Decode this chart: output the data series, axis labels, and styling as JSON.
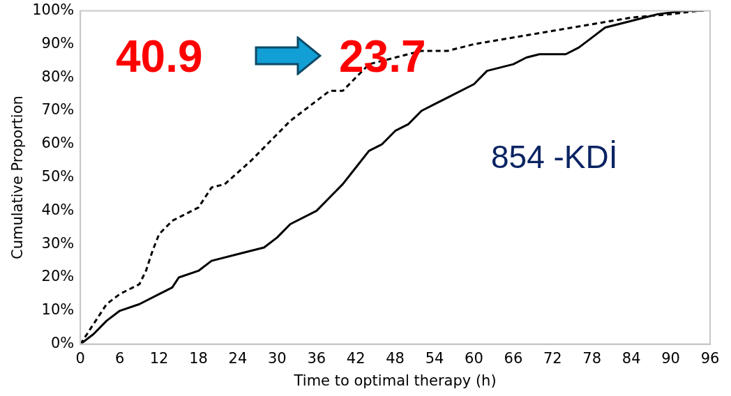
{
  "chart_data": {
    "type": "line",
    "xlabel": "Time to optimal therapy (h)",
    "ylabel": "Cumulative Proportion",
    "xlim": [
      0,
      96
    ],
    "xticks": [
      0,
      6,
      12,
      18,
      24,
      30,
      36,
      42,
      48,
      54,
      60,
      66,
      72,
      78,
      84,
      90,
      96
    ],
    "ylim": [
      0,
      100
    ],
    "yticks": [
      {
        "value": 0,
        "label": "0%"
      },
      {
        "value": 10,
        "label": "10%"
      },
      {
        "value": 20,
        "label": "20%"
      },
      {
        "value": 30,
        "label": "30%"
      },
      {
        "value": 40,
        "label": "40%"
      },
      {
        "value": 50,
        "label": "50%"
      },
      {
        "value": 60,
        "label": "60%"
      },
      {
        "value": 70,
        "label": "70%"
      },
      {
        "value": 80,
        "label": "80%"
      },
      {
        "value": 90,
        "label": "90%"
      },
      {
        "value": 100,
        "label": "100%"
      }
    ],
    "grid": false,
    "marker": "none",
    "series": [
      {
        "color": "#000000",
        "line_style": "solid",
        "x": [
          0,
          2,
          4,
          6,
          9,
          12,
          14,
          15,
          18,
          20,
          24,
          28,
          30,
          32,
          36,
          38,
          40,
          42,
          44,
          46,
          48,
          50,
          52,
          54,
          56,
          60,
          62,
          66,
          68,
          70,
          74,
          76,
          78,
          80,
          84,
          88,
          92,
          95
        ],
        "values": [
          0,
          3,
          7,
          10,
          12,
          15,
          17,
          20,
          22,
          25,
          27,
          29,
          32,
          36,
          40,
          44,
          48,
          53,
          58,
          60,
          64,
          66,
          70,
          72,
          74,
          78,
          82,
          84,
          86,
          87,
          87,
          89,
          92,
          95,
          97,
          99,
          100,
          100
        ]
      },
      {
        "color": "#000000",
        "line_style": "dashed",
        "x": [
          0,
          2,
          4,
          6,
          9,
          10,
          11,
          12,
          14,
          16,
          18,
          20,
          22,
          26,
          30,
          32,
          36,
          38,
          40,
          42,
          44,
          48,
          52,
          56,
          60,
          66,
          72,
          78,
          84,
          90,
          94
        ],
        "values": [
          0,
          6,
          12,
          15,
          18,
          22,
          28,
          33,
          37,
          39,
          41,
          47,
          48,
          55,
          63,
          67,
          73,
          76,
          76,
          80,
          84,
          86,
          88,
          88,
          90,
          92,
          94,
          96,
          98,
          99,
          100
        ]
      }
    ],
    "annotations": [
      "40.9",
      "23.7",
      "854 -KDİ"
    ]
  }
}
